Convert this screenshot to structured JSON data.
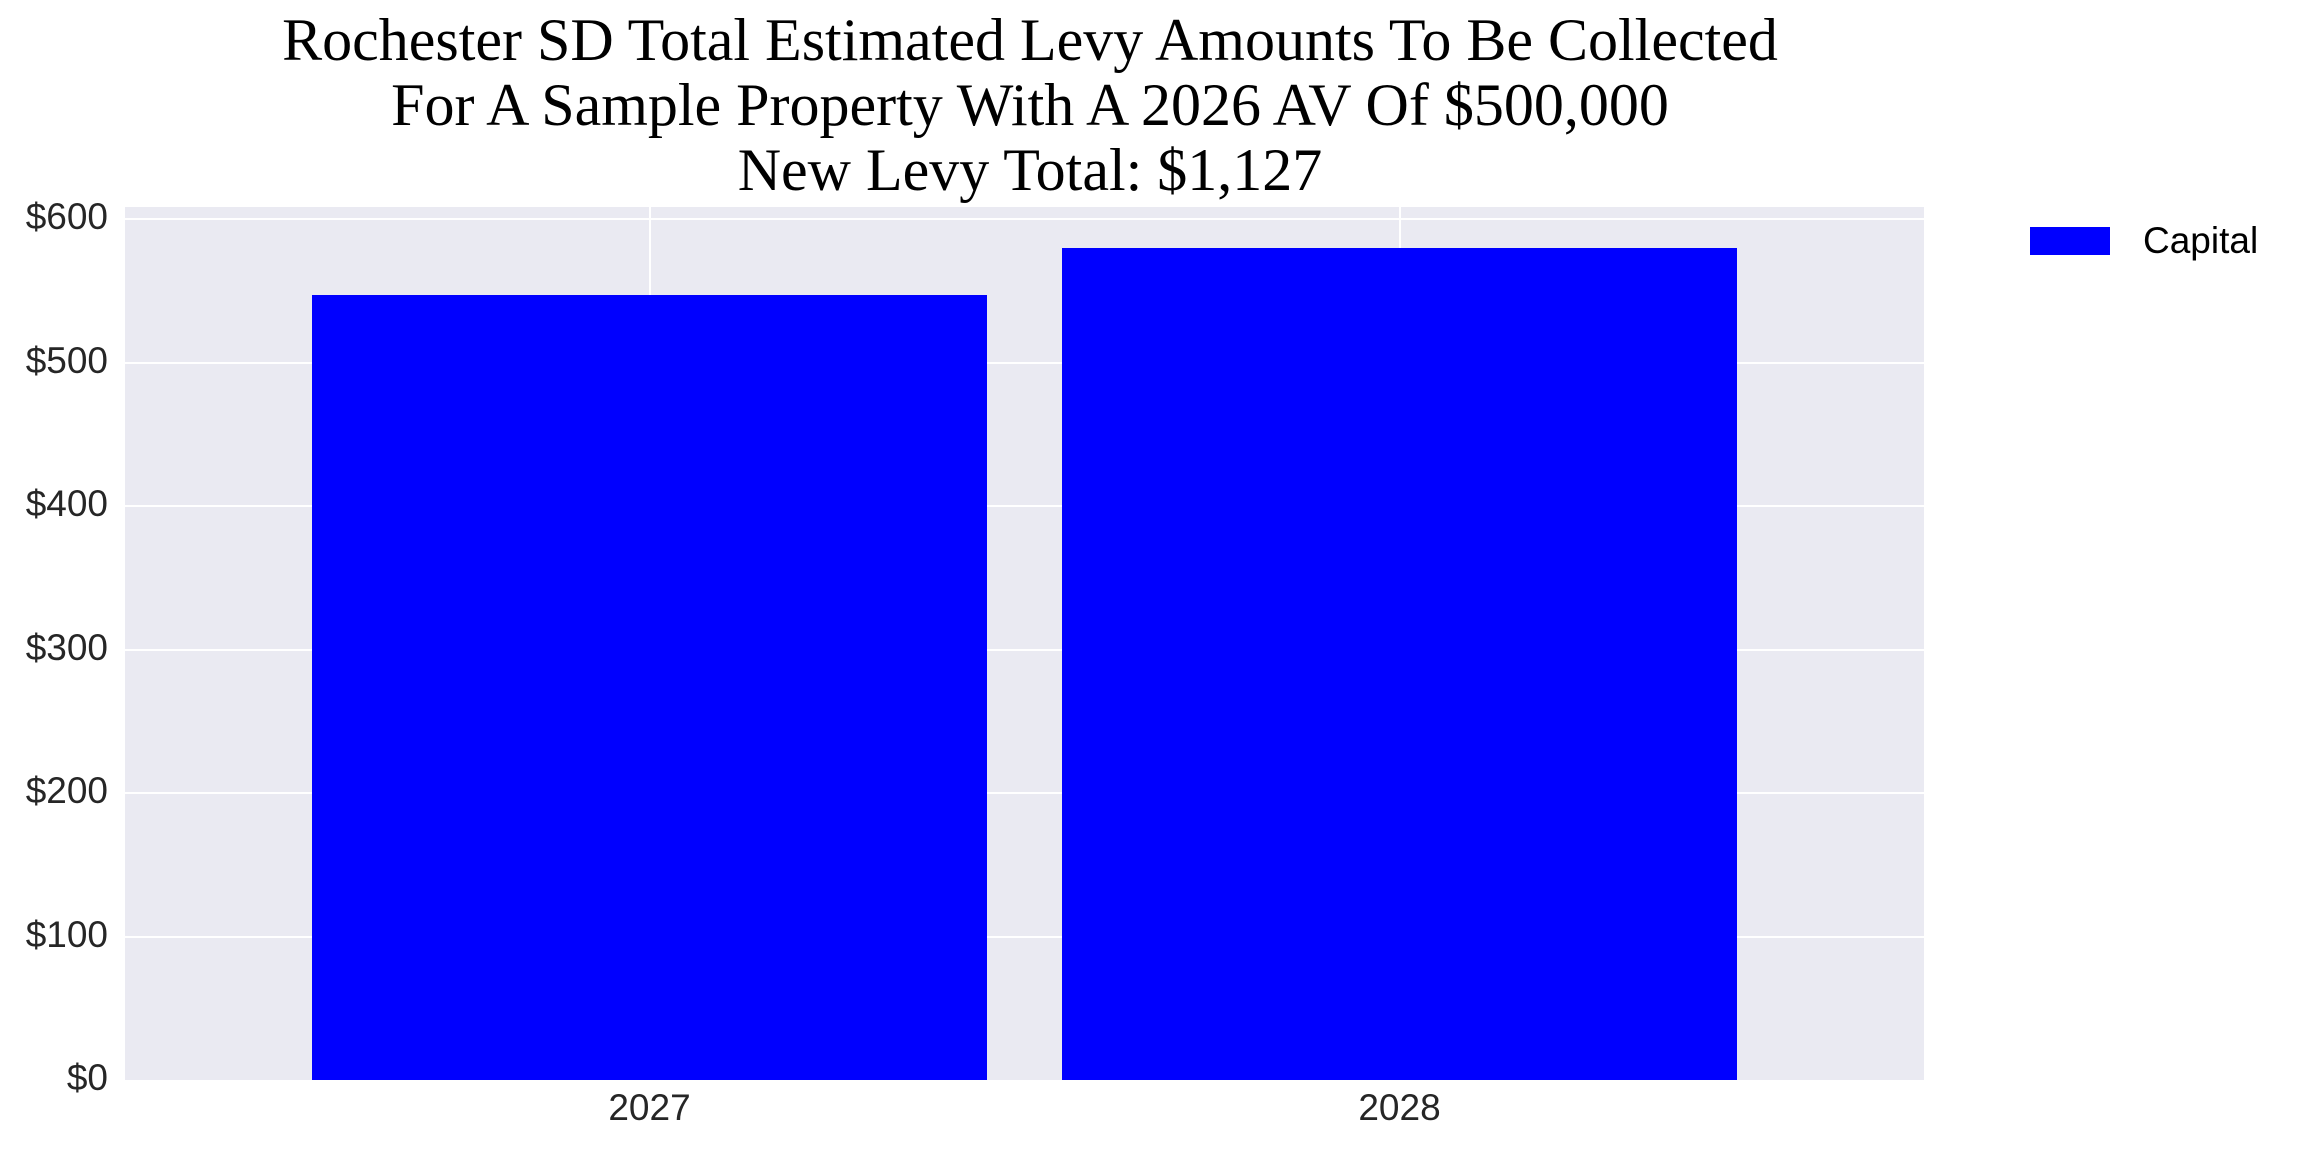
{
  "chart_data": {
    "type": "bar",
    "title": "Rochester SD Total Estimated Levy Amounts To Be Collected\nFor A Sample Property With A 2026 AV Of $500,000\nNew Levy Total: $1,127",
    "title_lines": [
      "Rochester SD Total Estimated Levy Amounts To Be Collected",
      "For A Sample Property With A 2026 AV Of $500,000",
      "New Levy Total: $1,127"
    ],
    "categories": [
      "2027",
      "2028"
    ],
    "series": [
      {
        "name": "Capital",
        "color": "#0000ff",
        "values": [
          547,
          580
        ]
      }
    ],
    "xlabel": "",
    "ylabel": "",
    "ylim": [
      0,
      600
    ],
    "yticks": [
      0,
      100,
      200,
      300,
      400,
      500,
      600
    ],
    "ytick_labels": [
      "$0",
      "$100",
      "$200",
      "$300",
      "$400",
      "$500",
      "$600"
    ],
    "grid": true,
    "legend_position": "outside-right-top",
    "background": "#eaeaf2"
  }
}
